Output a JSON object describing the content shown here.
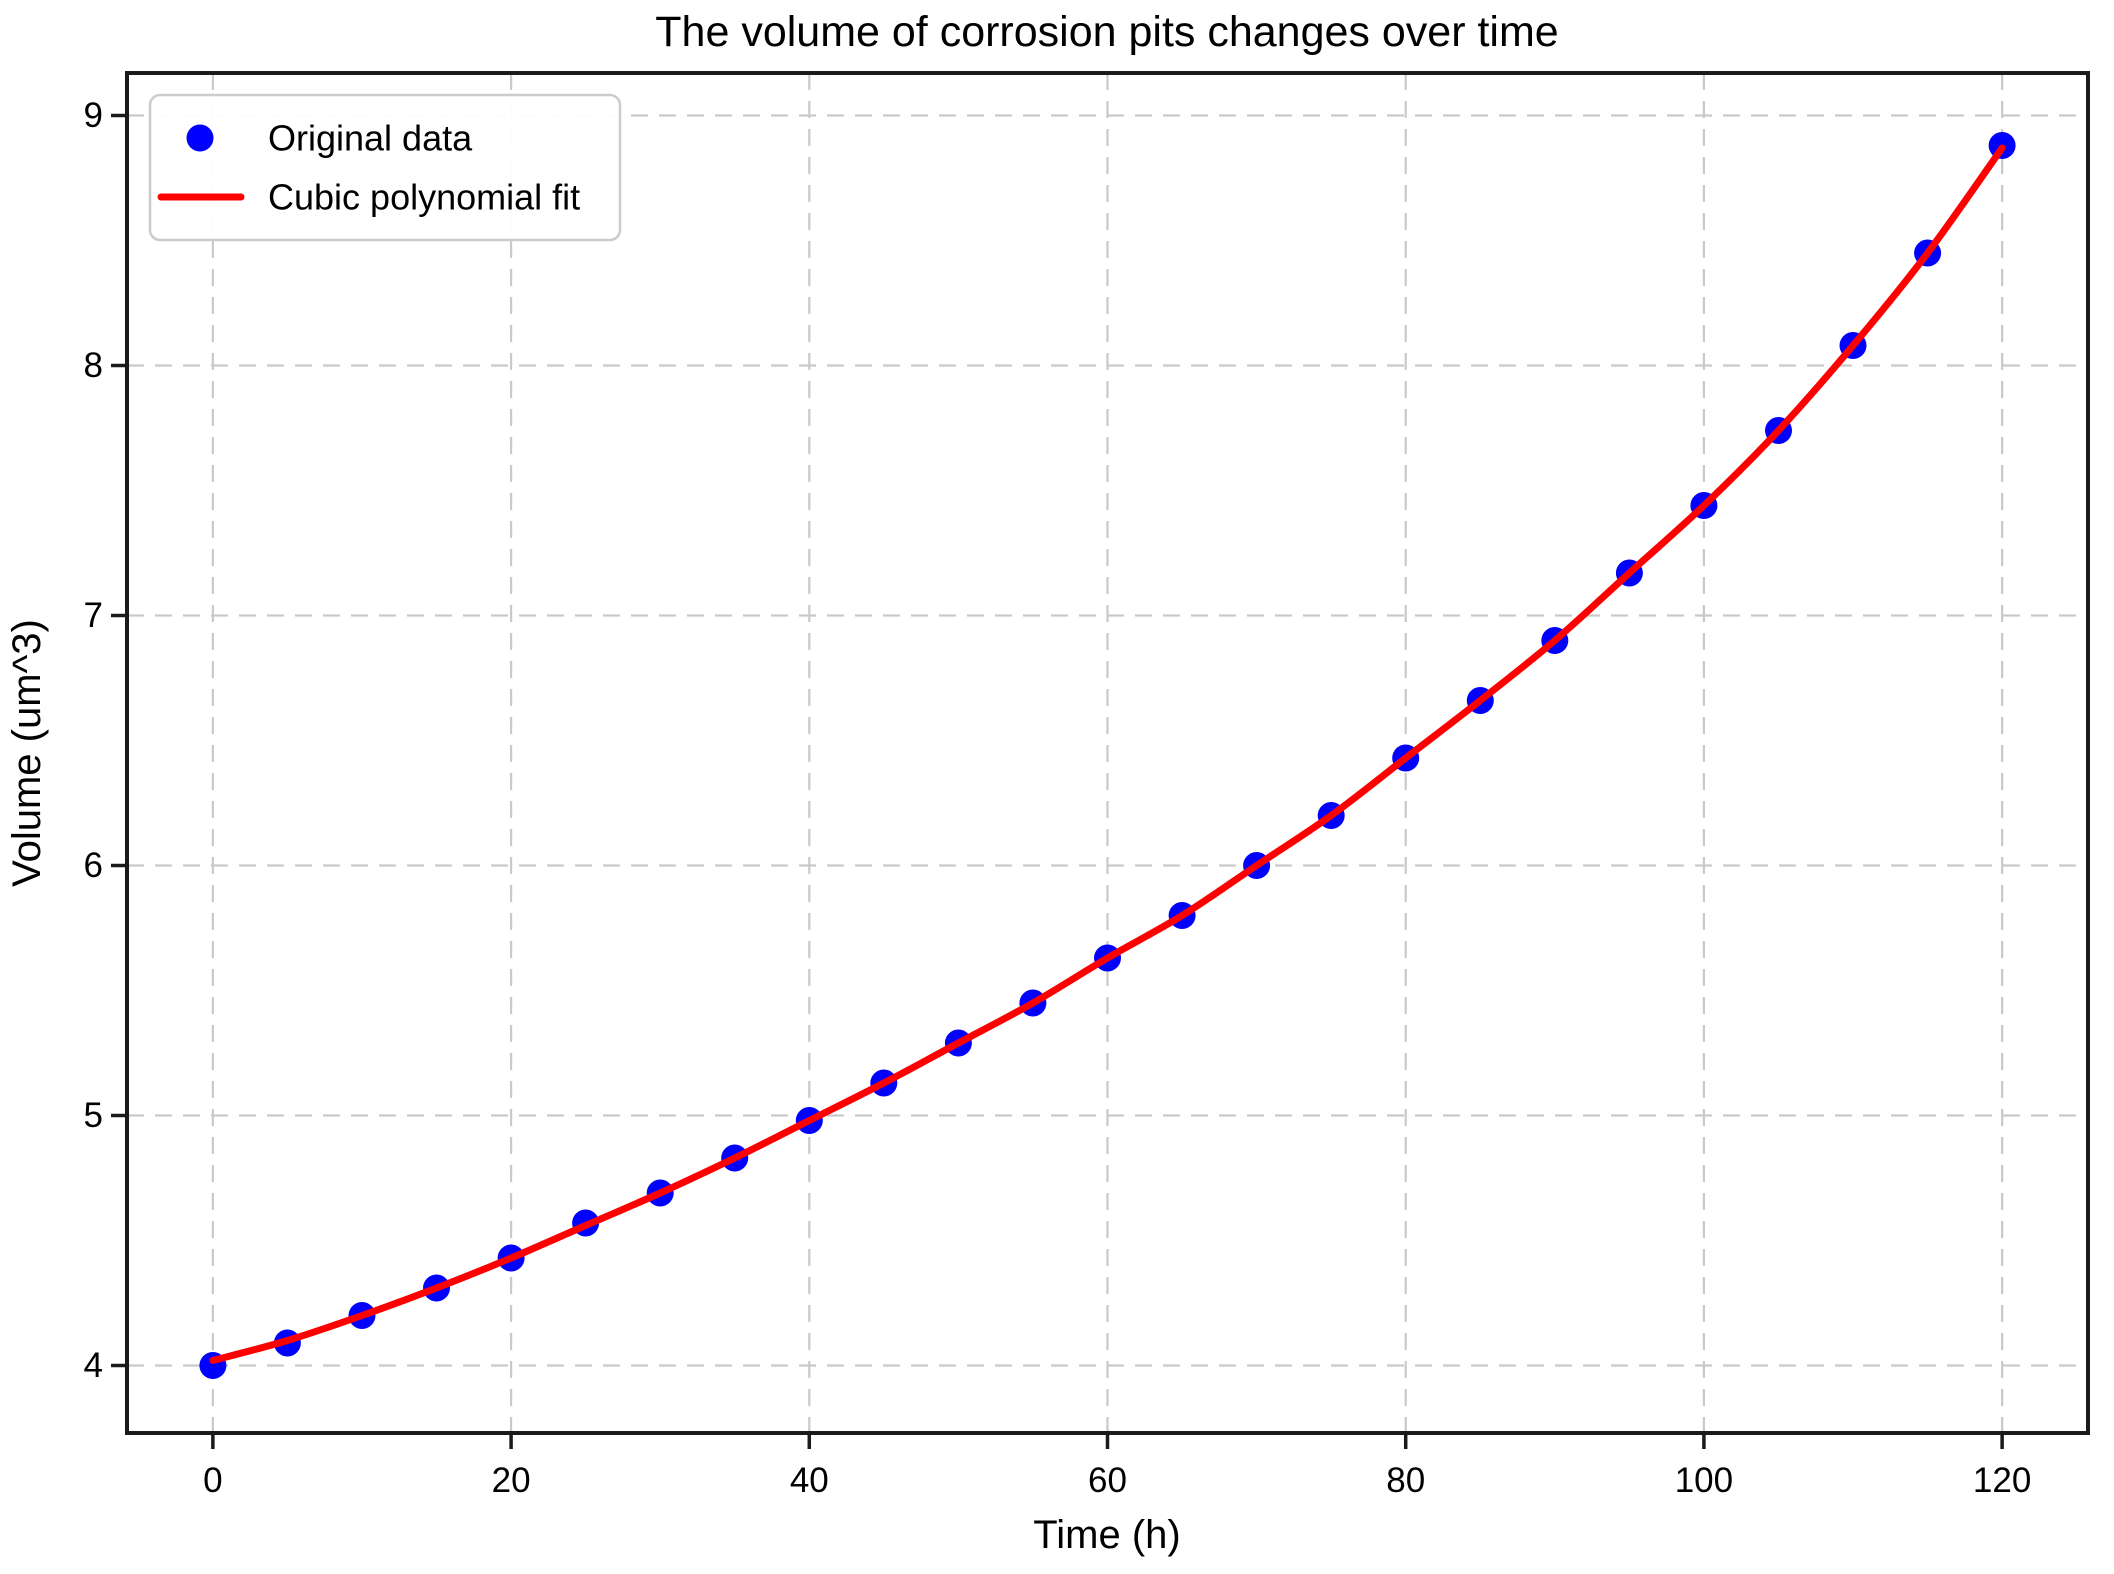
{
  "chart_data": {
    "type": "scatter",
    "title": "The volume of corrosion pits changes over time",
    "xlabel": "Time (h)",
    "ylabel": "Volume (um^3)",
    "xlim": [
      -5.76,
      125.76
    ],
    "ylim": [
      3.73,
      9.17
    ],
    "xticks": [
      0,
      20,
      40,
      60,
      80,
      100,
      120
    ],
    "yticks": [
      4,
      5,
      6,
      7,
      8,
      9
    ],
    "grid": true,
    "grid_style": "dashed",
    "legend_position": "upper-left",
    "x": [
      0,
      5,
      10,
      15,
      20,
      25,
      30,
      35,
      40,
      45,
      50,
      55,
      60,
      65,
      70,
      75,
      80,
      85,
      90,
      95,
      100,
      105,
      110,
      115,
      120
    ],
    "series": [
      {
        "name": "Original data",
        "type": "scatter",
        "color": "#0000ff",
        "values": [
          4.0,
          4.09,
          4.2,
          4.31,
          4.43,
          4.57,
          4.69,
          4.83,
          4.98,
          5.13,
          5.29,
          5.45,
          5.63,
          5.8,
          6.0,
          6.2,
          6.43,
          6.66,
          6.9,
          7.17,
          7.44,
          7.74,
          8.08,
          8.45,
          8.88
        ]
      },
      {
        "name": "Cubic polynomial fit",
        "type": "line",
        "color": "#ff0000",
        "values": [
          4.02,
          4.1,
          4.2,
          4.31,
          4.43,
          4.56,
          4.69,
          4.83,
          4.98,
          5.13,
          5.29,
          5.45,
          5.63,
          5.8,
          6.0,
          6.2,
          6.43,
          6.66,
          6.9,
          7.17,
          7.44,
          7.74,
          8.08,
          8.45,
          8.87
        ]
      }
    ]
  }
}
